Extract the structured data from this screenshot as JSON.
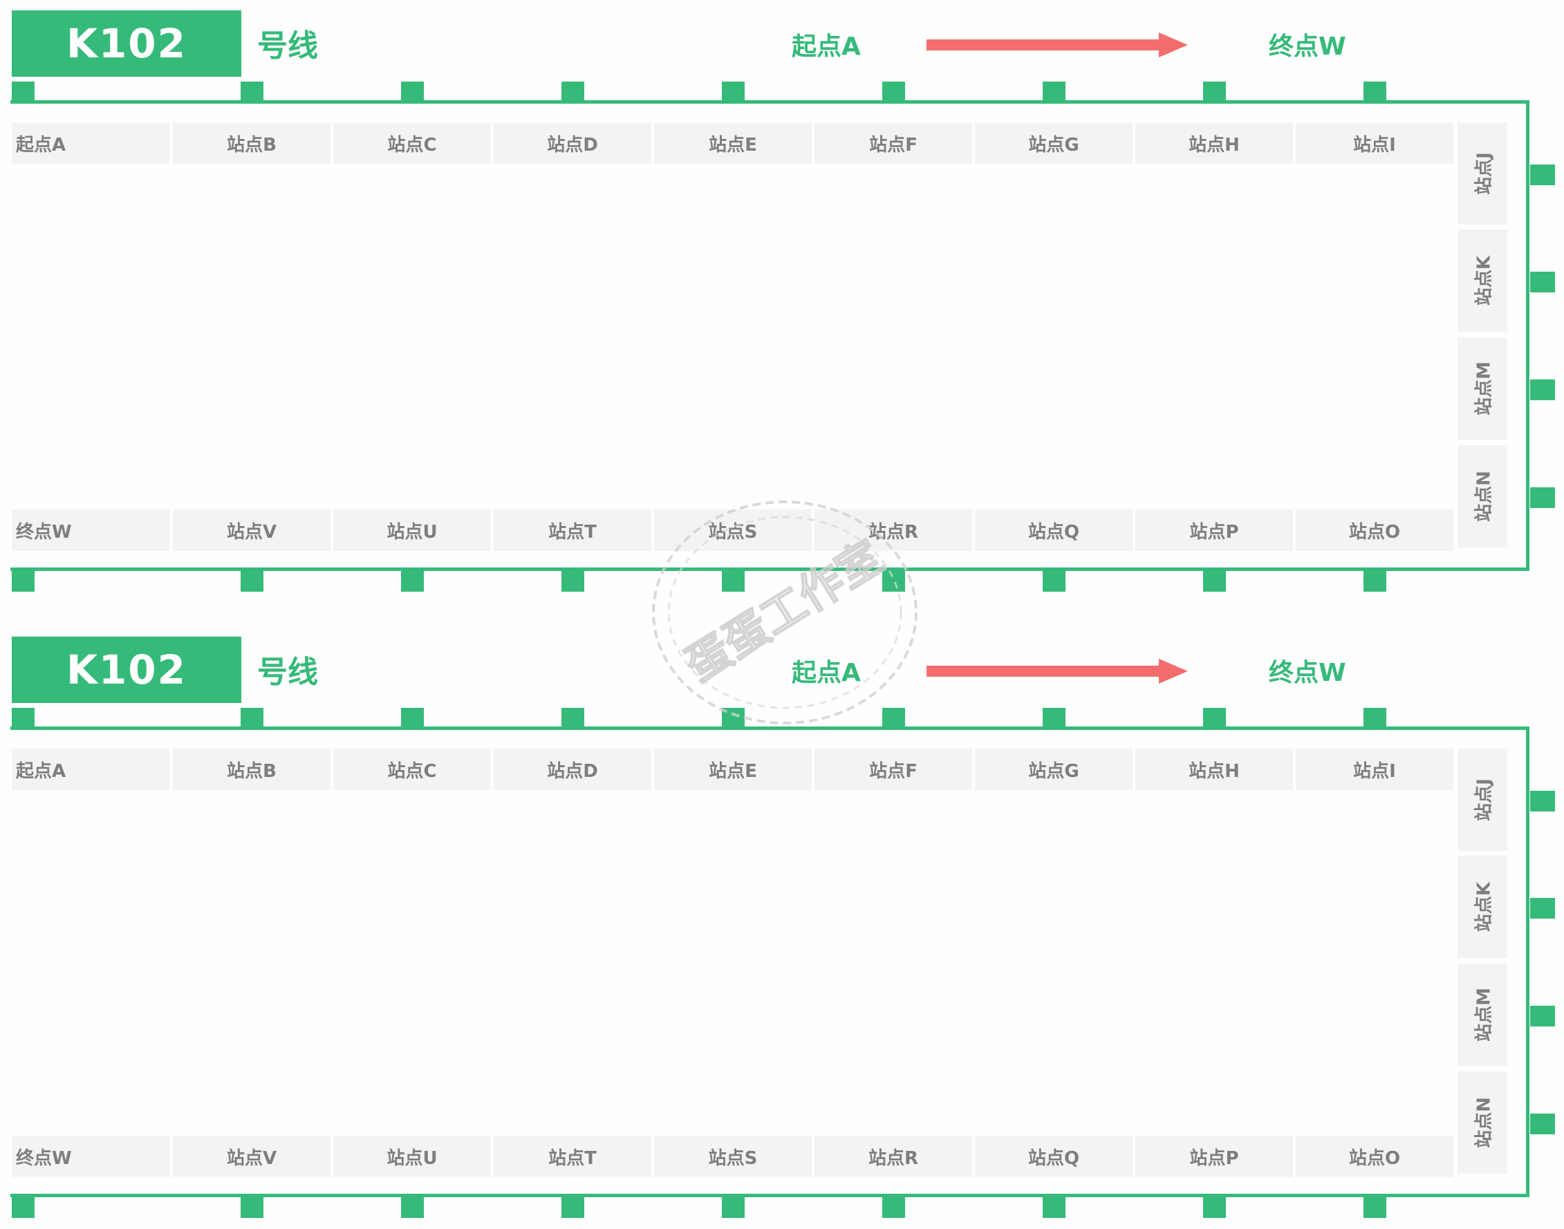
{
  "line": {
    "number": "K102",
    "suffix": "号线"
  },
  "direction": {
    "from": "起点A",
    "to": "终点W",
    "arrow_color": "#f36d6d"
  },
  "colors": {
    "accent": "#35ba79",
    "cell_bg": "#f3f3f5",
    "cell_text": "#7e7e7e"
  },
  "stations": {
    "top_row": [
      "起点A",
      "站点B",
      "站点C",
      "站点D",
      "站点E",
      "站点F",
      "站点G",
      "站点H",
      "站点I"
    ],
    "right_column": [
      "站点J",
      "站点K",
      "站点M",
      "站点N"
    ],
    "bottom_row": [
      "终点W",
      "站点V",
      "站点U",
      "站点T",
      "站点S",
      "站点R",
      "站点Q",
      "站点P",
      "站点O"
    ]
  },
  "watermark": {
    "text": "蛋蛋工作室"
  }
}
